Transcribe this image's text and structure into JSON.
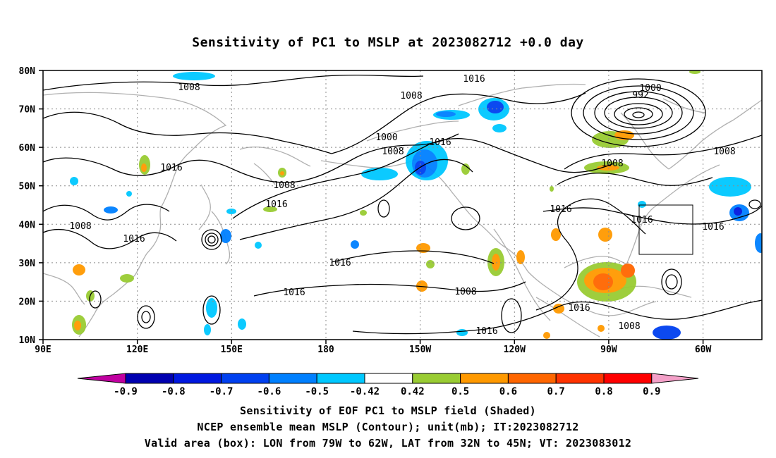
{
  "title": "Sensitivity of PC1 to MSLP at 2023082712 +0.0 day",
  "map": {
    "lat_ticks": [
      "80N",
      "70N",
      "60N",
      "50N",
      "40N",
      "30N",
      "20N",
      "10N"
    ],
    "lon_ticks": [
      "90E",
      "120E",
      "150E",
      "180",
      "150W",
      "120W",
      "90W",
      "60W"
    ],
    "contour_labels": [
      "1016",
      "1008",
      "1000",
      "992",
      "1008",
      "1016",
      "1008",
      "1016",
      "1016",
      "1008",
      "1000",
      "1008",
      "1016",
      "1016",
      "1016",
      "1008",
      "1016",
      "1016",
      "1016",
      "1008",
      "1016",
      "1008",
      "1016"
    ],
    "colors": {
      "land_outline": "#b0b0b0",
      "grid": "#8c8c8c",
      "contour": "#000000"
    }
  },
  "colorbar": {
    "labels": [
      "-0.9",
      "-0.8",
      "-0.7",
      "-0.6",
      "-0.5",
      "-0.42",
      "0.42",
      "0.5",
      "0.6",
      "0.7",
      "0.8",
      "0.9"
    ],
    "colors": [
      "#c000a0",
      "#0000b0",
      "#0018e0",
      "#0040f0",
      "#0080ff",
      "#00c8ff",
      "#ffffff",
      "#99cc33",
      "#ff9900",
      "#ff6600",
      "#ff3300",
      "#ff0000",
      "#f4a0c8"
    ]
  },
  "footer": {
    "line1": "Sensitivity of EOF PC1 to MSLP field (Shaded)",
    "line2": "NCEP ensemble mean MSLP (Contour); unit(mb); IT:2023082712",
    "line3": "Valid area (box): LON from 79W to 62W, LAT from 32N to 45N; VT: 2023083012"
  }
}
